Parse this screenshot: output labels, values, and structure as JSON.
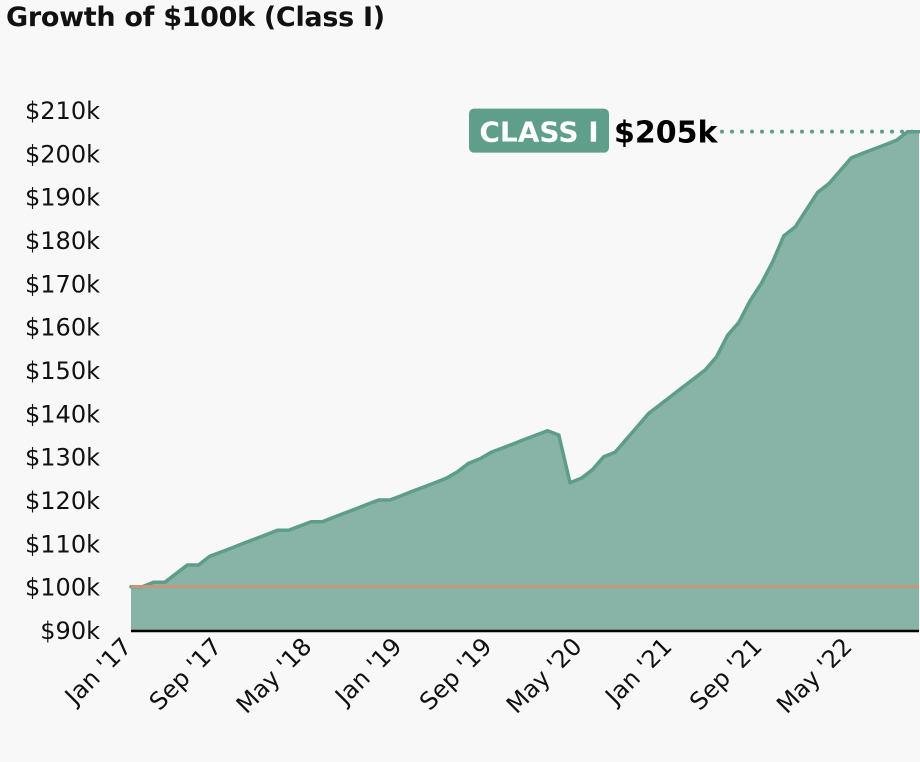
{
  "chart_data": {
    "type": "area",
    "title": "Growth of $100k (Class I)",
    "xlabel": "",
    "ylabel": "",
    "x_start": "Jan '17",
    "x_interval": "monthly",
    "x_tick_labels": [
      "Jan '17",
      "Sep '17",
      "May '18",
      "Jan '19",
      "Sep '19",
      "May '20",
      "Jan '21",
      "Sep '21",
      "May '22"
    ],
    "y_tick_labels": [
      "$90k",
      "$100k",
      "$110k",
      "$120k",
      "$130k",
      "$140k",
      "$150k",
      "$160k",
      "$170k",
      "$180k",
      "$190k",
      "$200k",
      "$210k"
    ],
    "ylim": [
      90,
      210
    ],
    "units": "thousands USD",
    "grid": false,
    "series": [
      {
        "name": "CLASS I",
        "values": [
          100,
          100,
          101,
          101,
          103,
          105,
          105,
          107,
          108,
          109,
          110,
          111,
          112,
          113,
          113,
          114,
          115,
          115,
          116,
          117,
          118,
          119,
          120,
          120,
          121,
          122,
          123,
          124,
          125,
          126.5,
          128.5,
          129.5,
          131,
          132,
          133,
          134,
          135,
          136,
          135,
          124,
          125,
          127,
          130,
          131,
          134,
          137,
          140,
          142,
          144,
          146,
          148,
          150,
          153,
          158,
          161,
          166,
          170,
          175,
          181,
          183,
          187,
          191,
          193,
          196,
          199,
          200,
          201,
          202,
          203,
          205,
          205
        ]
      }
    ],
    "reference_line": {
      "value": 100
    },
    "end_label": {
      "series": "CLASS I",
      "value_text": "$205k"
    },
    "colors": {
      "fill": "#87b4a6",
      "line": "#5e9d89",
      "label_bg": "#5f9e8a",
      "reference": "#c4987a",
      "axis": "#000000"
    }
  }
}
